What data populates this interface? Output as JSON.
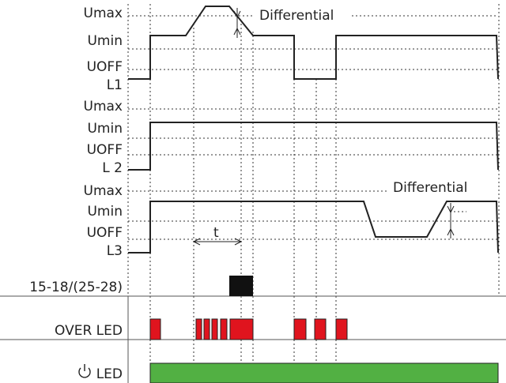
{
  "sections": [
    {
      "levels": [
        "Umax",
        "Umin",
        "UOFF"
      ],
      "name": "L1",
      "annotation": "Differential"
    },
    {
      "levels": [
        "Umax",
        "Umin",
        "UOFF"
      ],
      "name": "L 2"
    },
    {
      "levels": [
        "Umax",
        "Umin",
        "UOFF"
      ],
      "name": "L3",
      "annotation": "Differential"
    }
  ],
  "delay_label": "t",
  "relay_label": "15-18/(25-28)",
  "over_led_label": "OVER LED",
  "power_led_label": "LED"
}
